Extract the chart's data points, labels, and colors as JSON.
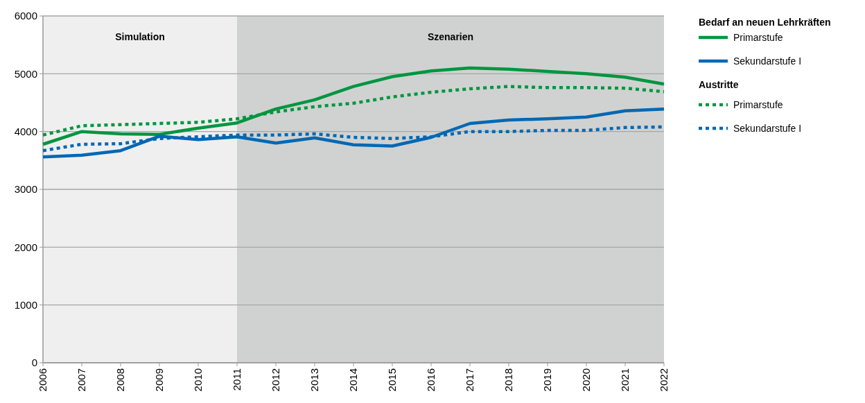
{
  "chart_data": {
    "type": "line",
    "x": [
      2006,
      2007,
      2008,
      2009,
      2010,
      2011,
      2012,
      2013,
      2014,
      2015,
      2016,
      2017,
      2018,
      2019,
      2020,
      2021,
      2022
    ],
    "xlim": [
      2006,
      2022
    ],
    "xticks": [
      2006,
      2007,
      2008,
      2009,
      2010,
      2011,
      2012,
      2013,
      2014,
      2015,
      2016,
      2017,
      2018,
      2019,
      2020,
      2021,
      2022
    ],
    "ylim": [
      0,
      6000
    ],
    "yticks": [
      0,
      1000,
      2000,
      3000,
      4000,
      5000,
      6000
    ],
    "grid": "y",
    "legend": "right",
    "legend_title": "Bedarf an neuen Lehrkräften",
    "marker": "none",
    "series": [
      {
        "name": "Primarstufe",
        "color": "#009640",
        "line_style": "solid",
        "values": [
          3780,
          4000,
          3960,
          3950,
          4060,
          4150,
          4390,
          4550,
          4780,
          4950,
          5050,
          5100,
          5080,
          5040,
          5000,
          4940,
          4820
        ]
      },
      {
        "name": "Sekundarstufe I",
        "color": "#0068b4",
        "line_style": "solid",
        "values": [
          3560,
          3590,
          3670,
          3920,
          3860,
          3910,
          3800,
          3890,
          3770,
          3750,
          3900,
          4140,
          4200,
          4220,
          4250,
          4360,
          4390
        ]
      },
      {
        "name": "Primarstufe",
        "color": "#009640",
        "line_style": "dotted",
        "values": [
          3940,
          4100,
          4120,
          4140,
          4160,
          4220,
          4340,
          4430,
          4490,
          4600,
          4680,
          4740,
          4780,
          4760,
          4760,
          4750,
          4690
        ]
      },
      {
        "name": "Sekundarstufe I",
        "color": "#0068b4",
        "line_style": "dotted",
        "values": [
          3670,
          3780,
          3790,
          3880,
          3910,
          3940,
          3940,
          3960,
          3900,
          3880,
          3910,
          4000,
          4000,
          4020,
          4020,
          4070,
          4080
        ]
      }
    ],
    "bands": [
      {
        "axis": "x",
        "from": 2006,
        "to": 2011,
        "label": "Simulation",
        "color": "#efefef"
      },
      {
        "axis": "x",
        "from": 2011,
        "to": 2022,
        "label": "Szenarien",
        "color": "#d0d2d1"
      }
    ],
    "annotations": [
      "Austritte"
    ]
  }
}
